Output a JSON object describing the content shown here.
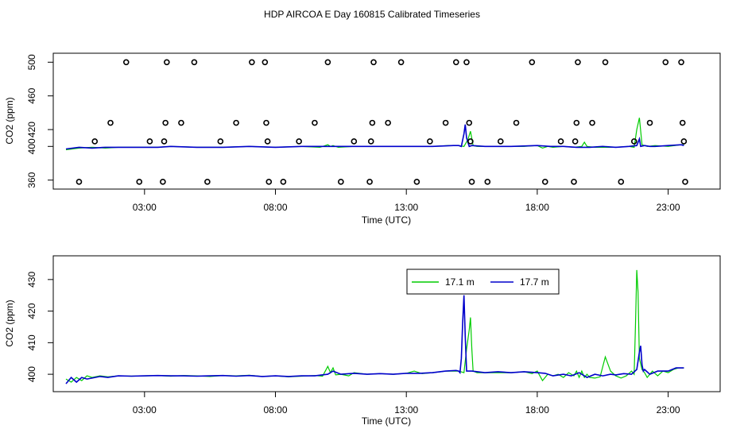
{
  "title": "HDP AIRCOA E  Day 160815  Calibrated Timeseries",
  "colors": {
    "green": "#00cc00",
    "blue": "#0000cc",
    "points": "#000000"
  },
  "chart_data": [
    {
      "type": "line",
      "xlabel": "Time (UTC)",
      "ylabel": "CO2 (ppm)",
      "xlim": [
        0,
        24.5
      ],
      "ylim": [
        355,
        505
      ],
      "xticks": [
        3,
        8,
        13,
        18,
        23
      ],
      "xtick_labels": [
        "03:00",
        "08:00",
        "13:00",
        "18:00",
        "23:00"
      ],
      "yticks": [
        360,
        400,
        420,
        460,
        500
      ],
      "ytick_labels": [
        "360",
        "400",
        "420",
        "460",
        "500"
      ],
      "legend": false,
      "calibration_points": {
        "x": [
          0.5,
          1.1,
          1.7,
          2.3,
          2.8,
          3.2,
          3.7,
          3.75,
          3.8,
          3.85,
          4.4,
          4.9,
          5.4,
          5.9,
          6.5,
          7.1,
          7.6,
          7.65,
          7.7,
          7.75,
          8.3,
          8.9,
          9.5,
          10.0,
          10.5,
          11.0,
          11.6,
          11.65,
          11.7,
          11.75,
          12.3,
          12.8,
          13.4,
          13.9,
          14.5,
          14.9,
          15.3,
          15.4,
          15.45,
          15.5,
          16.1,
          16.6,
          17.2,
          17.8,
          18.3,
          18.9,
          19.4,
          19.45,
          19.5,
          19.55,
          20.1,
          20.6,
          21.2,
          21.7,
          22.3,
          22.9,
          23.5,
          23.55,
          23.6,
          23.65
        ],
        "y": [
          358,
          406,
          428,
          500,
          358,
          406,
          358,
          406,
          428,
          500,
          428,
          500,
          358,
          406,
          428,
          500,
          500,
          428,
          406,
          358,
          358,
          406,
          428,
          500,
          358,
          406,
          358,
          406,
          428,
          500,
          428,
          500,
          358,
          406,
          428,
          500,
          500,
          428,
          406,
          358,
          358,
          406,
          428,
          500,
          358,
          406,
          358,
          406,
          428,
          500,
          428,
          500,
          358,
          406,
          428,
          500,
          500,
          428,
          406,
          358
        ]
      },
      "series": [
        {
          "color": "green",
          "x": [
            0.0,
            0.5,
            1.0,
            1.5,
            2.0,
            2.5,
            3.0,
            3.5,
            4.0,
            5.0,
            6.0,
            7.0,
            8.0,
            9.0,
            9.7,
            10.0,
            10.1,
            10.2,
            10.4,
            11.0,
            12.0,
            13.0,
            14.0,
            14.6,
            15.0,
            15.2,
            15.35,
            15.45,
            15.55,
            15.7,
            16.0,
            17.0,
            17.5,
            18.0,
            18.2,
            18.4,
            18.6,
            19.0,
            19.4,
            19.7,
            19.8,
            19.9,
            20.2,
            20.5,
            21.0,
            21.5,
            21.7,
            21.8,
            21.9,
            22.0,
            22.2,
            22.5,
            23.0,
            23.5,
            23.6
          ],
          "y": [
            396,
            398,
            399,
            398,
            399,
            399,
            399,
            399,
            400,
            399,
            399,
            400,
            399,
            400,
            399,
            402,
            400,
            401,
            399,
            400,
            400,
            400,
            400,
            401,
            401,
            400,
            408,
            418,
            401,
            400,
            400,
            400,
            400,
            401,
            398,
            400,
            399,
            400,
            399,
            400,
            405,
            400,
            399,
            399,
            399,
            400,
            399,
            420,
            434,
            402,
            400,
            401,
            400,
            402,
            402
          ]
        },
        {
          "color": "blue",
          "x": [
            0.0,
            0.5,
            1.0,
            1.5,
            2.0,
            2.5,
            3.0,
            3.5,
            4.0,
            5.0,
            6.0,
            7.0,
            8.0,
            9.0,
            10.0,
            11.0,
            12.0,
            13.0,
            14.0,
            14.8,
            15.0,
            15.1,
            15.2,
            15.25,
            15.3,
            15.4,
            15.5,
            16.0,
            17.0,
            18.0,
            18.5,
            19.0,
            19.5,
            20.0,
            20.5,
            21.0,
            21.5,
            21.8,
            21.9,
            21.95,
            22.1,
            22.3,
            22.5,
            23.0,
            23.5,
            23.6
          ],
          "y": [
            397,
            399,
            398,
            399,
            399,
            399,
            399,
            399,
            400,
            399,
            399,
            400,
            399,
            400,
            400,
            400,
            400,
            400,
            400,
            401,
            401,
            400,
            415,
            426,
            410,
            400,
            401,
            400,
            400,
            401,
            400,
            400,
            399,
            399,
            400,
            399,
            400,
            401,
            409,
            400,
            401,
            400,
            400,
            401,
            402,
            401
          ]
        }
      ]
    },
    {
      "type": "line",
      "xlabel": "Time (UTC)",
      "ylabel": "CO2 (ppm)",
      "xlim": [
        0,
        24.5
      ],
      "ylim": [
        396,
        436
      ],
      "xticks": [
        3,
        8,
        13,
        18,
        23
      ],
      "xtick_labels": [
        "03:00",
        "08:00",
        "13:00",
        "18:00",
        "23:00"
      ],
      "yticks": [
        400,
        410,
        420,
        430
      ],
      "ytick_labels": [
        "400",
        "410",
        "420",
        "430"
      ],
      "legend": true,
      "series": [
        {
          "name": "17.1 m",
          "color": "green",
          "x": [
            0.0,
            0.2,
            0.4,
            0.6,
            0.8,
            1.0,
            1.3,
            1.6,
            2.0,
            2.5,
            3.0,
            3.5,
            4.0,
            4.5,
            5.0,
            5.5,
            6.0,
            6.5,
            7.0,
            7.5,
            8.0,
            8.5,
            9.0,
            9.5,
            9.8,
            10.0,
            10.1,
            10.2,
            10.3,
            10.5,
            10.8,
            11.0,
            11.5,
            12.0,
            12.5,
            13.0,
            13.3,
            13.6,
            14.0,
            14.5,
            15.0,
            15.2,
            15.3,
            15.4,
            15.45,
            15.5,
            15.55,
            15.7,
            16.0,
            16.5,
            17.0,
            17.5,
            17.8,
            18.0,
            18.2,
            18.4,
            18.6,
            18.8,
            19.0,
            19.2,
            19.4,
            19.5,
            19.6,
            19.7,
            19.8,
            19.9,
            20.0,
            20.2,
            20.4,
            20.6,
            20.8,
            21.0,
            21.2,
            21.4,
            21.6,
            21.7,
            21.75,
            21.8,
            21.85,
            21.9,
            22.0,
            22.1,
            22.2,
            22.4,
            22.6,
            22.8,
            23.0,
            23.2,
            23.4,
            23.6
          ],
          "y": [
            398.5,
            397.5,
            399,
            398,
            399.5,
            399,
            399.5,
            399.2,
            399.5,
            399.4,
            399.5,
            399.6,
            399.4,
            399.6,
            399.5,
            399.3,
            399.6,
            399.5,
            399.7,
            399.3,
            399.5,
            399.2,
            399.4,
            399.6,
            399.4,
            402.5,
            400.5,
            402,
            399.8,
            400,
            399.5,
            400.5,
            400,
            400.2,
            400,
            400.3,
            401,
            400.2,
            400.5,
            401,
            401,
            400.5,
            408,
            414,
            418,
            408,
            401,
            400.5,
            400.5,
            400.5,
            400.5,
            400.8,
            400.2,
            401,
            398,
            400,
            399.5,
            400,
            399,
            400.5,
            399.5,
            401,
            399,
            401,
            399,
            400,
            399,
            398.8,
            399.2,
            405.5,
            401,
            399.5,
            398.8,
            399.5,
            401,
            400,
            415,
            433,
            426,
            405,
            401.5,
            400.5,
            399,
            401,
            399.5,
            401,
            400.5,
            401.5,
            402,
            402
          ]
        },
        {
          "name": "17.7 m",
          "color": "blue",
          "x": [
            0.0,
            0.2,
            0.4,
            0.6,
            0.8,
            1.0,
            1.3,
            1.6,
            2.0,
            2.5,
            3.0,
            3.5,
            4.0,
            4.5,
            5.0,
            5.5,
            6.0,
            6.5,
            7.0,
            7.5,
            8.0,
            8.5,
            9.0,
            9.5,
            10.0,
            10.2,
            10.5,
            11.0,
            11.5,
            12.0,
            12.5,
            13.0,
            13.5,
            14.0,
            14.5,
            14.9,
            15.0,
            15.05,
            15.1,
            15.15,
            15.2,
            15.25,
            15.3,
            15.4,
            15.5,
            16.0,
            16.5,
            17.0,
            17.5,
            18.0,
            18.3,
            18.6,
            19.0,
            19.3,
            19.6,
            19.9,
            20.2,
            20.5,
            20.8,
            21.0,
            21.3,
            21.6,
            21.8,
            21.9,
            21.95,
            22.0,
            22.05,
            22.1,
            22.3,
            22.6,
            23.0,
            23.3,
            23.6
          ],
          "y": [
            397,
            399,
            397.5,
            399,
            398.5,
            398.8,
            399.3,
            399,
            399.5,
            399.4,
            399.5,
            399.6,
            399.5,
            399.5,
            399.4,
            399.5,
            399.6,
            399.4,
            399.6,
            399.3,
            399.5,
            399.3,
            399.5,
            399.5,
            400,
            401,
            400,
            400.3,
            400,
            400.2,
            400,
            400.3,
            400.3,
            400.5,
            401,
            401.2,
            401,
            400.5,
            405,
            416,
            425,
            412,
            401,
            401,
            401,
            400.5,
            400.8,
            400.5,
            400.8,
            400.5,
            400.3,
            399.5,
            400,
            399.5,
            400.5,
            399,
            400,
            399.5,
            400,
            399.8,
            400.2,
            400,
            401.5,
            407,
            409,
            403,
            401,
            401.5,
            400,
            401,
            401,
            402,
            402
          ]
        }
      ]
    }
  ]
}
